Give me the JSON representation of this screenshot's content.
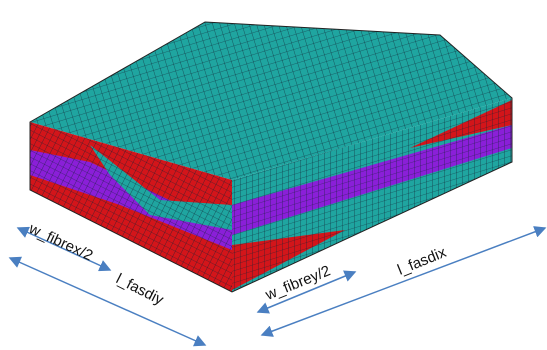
{
  "labels": [
    "w_fibrex/2",
    "l_fasdiy",
    "w_fibrey/2",
    "l_fasdix"
  ]
}
